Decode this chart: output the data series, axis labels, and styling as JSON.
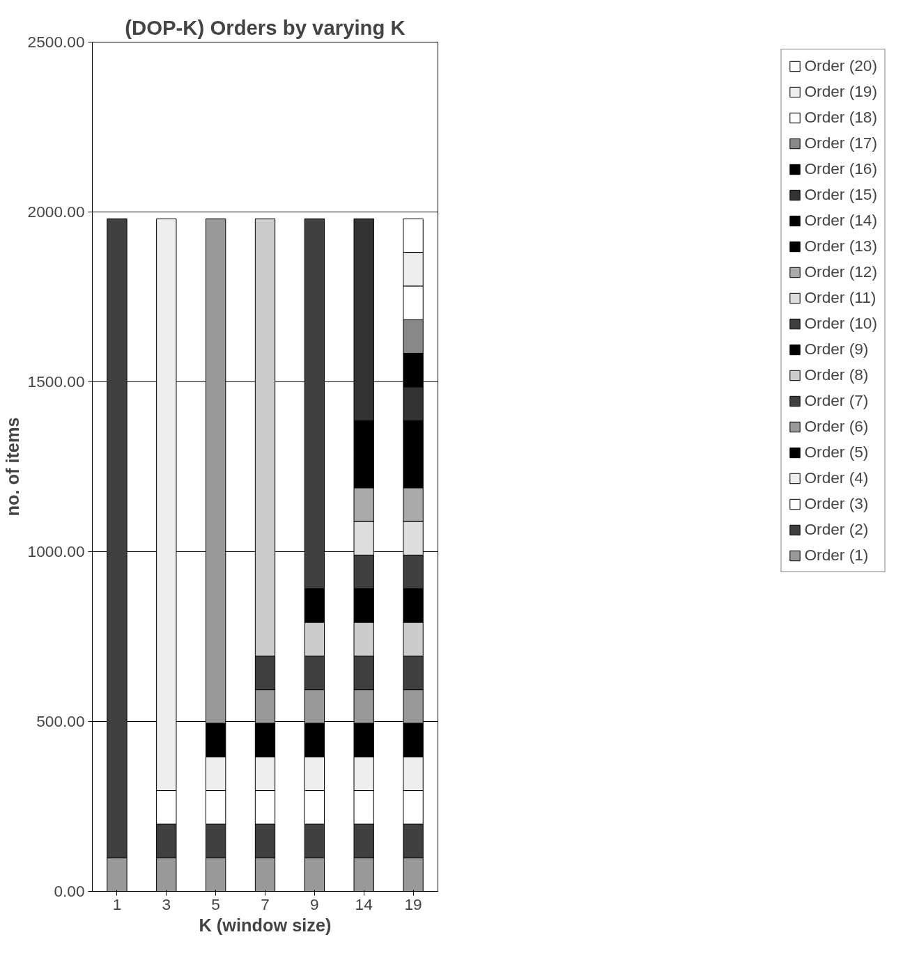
{
  "chart_data": {
    "type": "bar",
    "stacked": true,
    "title": "(DOP-K) Orders by varying K",
    "xlabel": "K (window size)",
    "ylabel": "no. of items",
    "categories": [
      "1",
      "3",
      "5",
      "7",
      "9",
      "14",
      "19"
    ],
    "ylim": [
      0,
      2500
    ],
    "yticks": [
      {
        "value": 0,
        "label": "0.00"
      },
      {
        "value": 500,
        "label": "500.00"
      },
      {
        "value": 1000,
        "label": "1000.00"
      },
      {
        "value": 1500,
        "label": "1500.00"
      },
      {
        "value": 2000,
        "label": "2000.00"
      },
      {
        "value": 2500,
        "label": "2500.00"
      }
    ],
    "grid": "y",
    "legend": "right",
    "series": [
      {
        "name": "Order (1)",
        "color": "#999999",
        "values": [
          99,
          99,
          99,
          99,
          99,
          99,
          99
        ]
      },
      {
        "name": "Order (2)",
        "color": "#404040",
        "values": [
          1881,
          99,
          99,
          99,
          99,
          99,
          99
        ]
      },
      {
        "name": "Order (3)",
        "color": "#ffffff",
        "values": [
          null,
          99,
          99,
          99,
          99,
          99,
          99
        ]
      },
      {
        "name": "Order (4)",
        "color": "#eeeeee",
        "values": [
          null,
          1683,
          99,
          99,
          99,
          99,
          99
        ]
      },
      {
        "name": "Order (5)",
        "color": "#000000",
        "values": [
          null,
          null,
          99,
          99,
          99,
          99,
          99
        ]
      },
      {
        "name": "Order (6)",
        "color": "#999999",
        "values": [
          null,
          null,
          1485,
          99,
          99,
          99,
          99
        ]
      },
      {
        "name": "Order (7)",
        "color": "#404040",
        "values": [
          null,
          null,
          null,
          99,
          99,
          99,
          99
        ]
      },
      {
        "name": "Order (8)",
        "color": "#cccccc",
        "values": [
          null,
          null,
          null,
          1287,
          99,
          99,
          99
        ]
      },
      {
        "name": "Order (9)",
        "color": "#000000",
        "values": [
          null,
          null,
          null,
          null,
          99,
          99,
          99
        ]
      },
      {
        "name": "Order (10)",
        "color": "#404040",
        "values": [
          null,
          null,
          null,
          null,
          1089,
          99,
          99
        ]
      },
      {
        "name": "Order (11)",
        "color": "#dddddd",
        "values": [
          null,
          null,
          null,
          null,
          null,
          99,
          99
        ]
      },
      {
        "name": "Order (12)",
        "color": "#aaaaaa",
        "values": [
          null,
          null,
          null,
          null,
          null,
          99,
          99
        ]
      },
      {
        "name": "Order (13)",
        "color": "#000000",
        "values": [
          null,
          null,
          null,
          null,
          null,
          99,
          99
        ]
      },
      {
        "name": "Order (14)",
        "color": "#000000",
        "values": [
          null,
          null,
          null,
          null,
          null,
          99,
          99
        ]
      },
      {
        "name": "Order (15)",
        "color": "#333333",
        "values": [
          null,
          null,
          null,
          null,
          null,
          594,
          99
        ]
      },
      {
        "name": "Order (16)",
        "color": "#000000",
        "values": [
          null,
          null,
          null,
          null,
          null,
          null,
          99
        ]
      },
      {
        "name": "Order (17)",
        "color": "#888888",
        "values": [
          null,
          null,
          null,
          null,
          null,
          null,
          99
        ]
      },
      {
        "name": "Order (18)",
        "color": "#ffffff",
        "values": [
          null,
          null,
          null,
          null,
          null,
          null,
          99
        ]
      },
      {
        "name": "Order (19)",
        "color": "#eeeeee",
        "values": [
          null,
          null,
          null,
          null,
          null,
          null,
          99
        ]
      },
      {
        "name": "Order (20)",
        "color": "#ffffff",
        "values": [
          null,
          null,
          null,
          null,
          null,
          null,
          99
        ]
      }
    ]
  }
}
